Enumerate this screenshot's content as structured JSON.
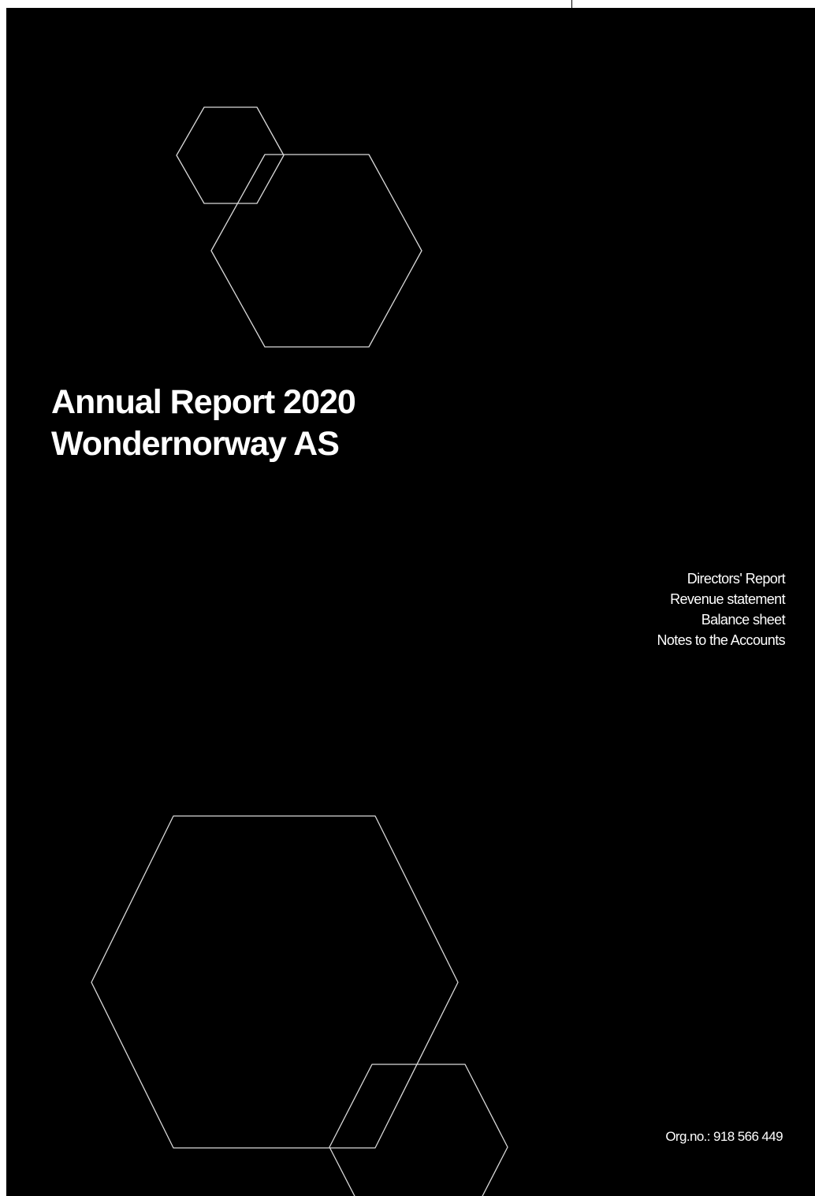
{
  "cover": {
    "title_line1": "Annual Report 2020",
    "title_line2": "Wondernorway AS",
    "contents": [
      "Directors' Report",
      "Revenue statement",
      "Balance sheet",
      "Notes to the Accounts"
    ],
    "org_number": "Org.no.: 918 566 449"
  },
  "colors": {
    "background": "#000000",
    "text": "#ffffff",
    "outline": "#d9d9d9"
  },
  "icons": [
    "hexagon-outline-icon"
  ]
}
